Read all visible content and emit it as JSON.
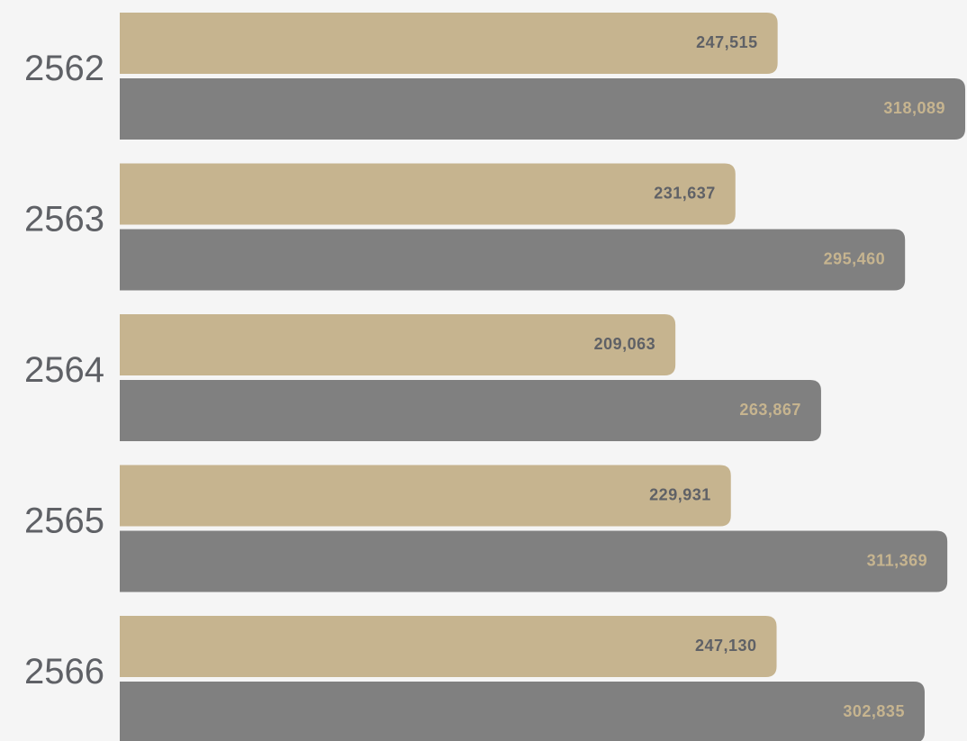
{
  "chart_data": {
    "type": "hbar",
    "categories": [
      "2562",
      "2563",
      "2564",
      "2565",
      "2566"
    ],
    "series": [
      {
        "color": "#c6b48f",
        "label_color": "#5f6166",
        "values": [
          247515,
          231637,
          209063,
          229931,
          247130
        ],
        "value_labels": [
          "247,515",
          "231,637",
          "209,063",
          "229,931",
          "247,130"
        ]
      },
      {
        "color": "#808080",
        "label_color": "#c6b48f",
        "values": [
          318089,
          295460,
          263867,
          311369,
          302835
        ],
        "value_labels": [
          "318,089",
          "295,460",
          "263,867",
          "311,369",
          "302,835"
        ]
      }
    ]
  }
}
